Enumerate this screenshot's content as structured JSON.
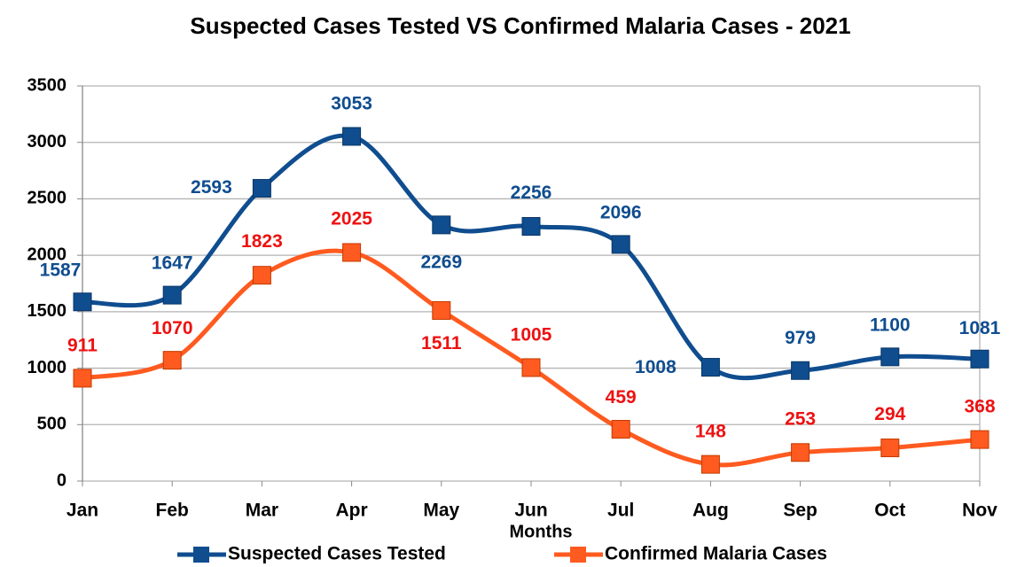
{
  "chart_data": {
    "type": "line",
    "title": "Suspected Cases Tested VS Confirmed Malaria Cases - 2021",
    "x_label": "Months",
    "categories": [
      "Jan",
      "Feb",
      "Mar",
      "Apr",
      "May",
      "Jun",
      "Jul",
      "Aug",
      "Sep",
      "Oct",
      "Nov"
    ],
    "series": [
      {
        "name": "Suspected Cases Tested",
        "color": "#0f4d8f",
        "label_color": "#0f4d8f",
        "values": [
          1587,
          1647,
          2593,
          3053,
          2269,
          2256,
          2096,
          1008,
          979,
          1100,
          1081
        ]
      },
      {
        "name": "Confirmed Malaria Cases",
        "color": "#ff5a1f",
        "label_color": "#ee1111",
        "values": [
          911,
          1070,
          1823,
          2025,
          1511,
          1005,
          459,
          148,
          253,
          294,
          368
        ]
      }
    ],
    "ylim": [
      0,
      3500
    ],
    "yticks": [
      0,
      500,
      1000,
      1500,
      2000,
      2500,
      3000,
      3500
    ],
    "grid": true,
    "smooth": true,
    "legend": "bottom"
  }
}
